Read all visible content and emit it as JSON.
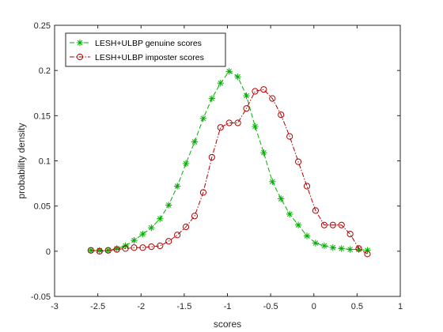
{
  "chart_data": {
    "type": "line",
    "title": "",
    "xlabel": "scores",
    "ylabel": "probability density",
    "xlim": [
      -3,
      1
    ],
    "ylim": [
      -0.05,
      0.25
    ],
    "xticks": [
      -3,
      -2.5,
      -2,
      -1.5,
      -1,
      -0.5,
      0,
      0.5,
      1
    ],
    "yticks": [
      -0.05,
      0,
      0.05,
      0.1,
      0.15,
      0.2,
      0.25
    ],
    "xtick_labels": [
      "-3",
      "-2.5",
      "-2",
      "-1.5",
      "-1",
      "-0.5",
      "0",
      "0.5",
      "1"
    ],
    "ytick_labels": [
      "-0.05",
      "0",
      "0.05",
      "0.1",
      "0.15",
      "0.2",
      "0.25"
    ],
    "grid": false,
    "legend_position": "top-left",
    "series": [
      {
        "name": "LESH+ULBP genuine scores",
        "color": "#00b000",
        "marker": "asterisk",
        "line_style": "dashed",
        "x": [
          -2.58,
          -2.48,
          -2.38,
          -2.28,
          -2.18,
          -2.08,
          -1.98,
          -1.88,
          -1.78,
          -1.68,
          -1.58,
          -1.48,
          -1.38,
          -1.28,
          -1.18,
          -1.08,
          -0.98,
          -0.88,
          -0.78,
          -0.68,
          -0.58,
          -0.48,
          -0.38,
          -0.28,
          -0.18,
          -0.08,
          0.02,
          0.12,
          0.22,
          0.32,
          0.42,
          0.52,
          0.62
        ],
        "y": [
          0.001,
          0.001,
          0.001,
          0.003,
          0.006,
          0.012,
          0.019,
          0.026,
          0.036,
          0.051,
          0.072,
          0.097,
          0.121,
          0.147,
          0.169,
          0.186,
          0.199,
          0.193,
          0.172,
          0.138,
          0.109,
          0.077,
          0.058,
          0.041,
          0.029,
          0.017,
          0.009,
          0.006,
          0.004,
          0.003,
          0.002,
          0.002,
          0.001
        ]
      },
      {
        "name": "LESH+ULBP imposter scores",
        "color": "#b00000",
        "marker": "circle",
        "line_style": "dash-dot",
        "x": [
          -2.58,
          -2.48,
          -2.38,
          -2.28,
          -2.18,
          -2.08,
          -1.98,
          -1.88,
          -1.78,
          -1.68,
          -1.58,
          -1.48,
          -1.38,
          -1.28,
          -1.18,
          -1.08,
          -0.98,
          -0.88,
          -0.78,
          -0.68,
          -0.58,
          -0.48,
          -0.38,
          -0.28,
          -0.18,
          -0.08,
          0.02,
          0.12,
          0.22,
          0.32,
          0.42,
          0.52,
          0.62
        ],
        "y": [
          0.001,
          0.0,
          0.001,
          0.002,
          0.003,
          0.004,
          0.004,
          0.005,
          0.006,
          0.011,
          0.018,
          0.027,
          0.039,
          0.065,
          0.104,
          0.137,
          0.142,
          0.142,
          0.158,
          0.177,
          0.179,
          0.169,
          0.151,
          0.127,
          0.099,
          0.072,
          0.045,
          0.029,
          0.029,
          0.029,
          0.019,
          0.003,
          -0.003
        ]
      }
    ]
  }
}
